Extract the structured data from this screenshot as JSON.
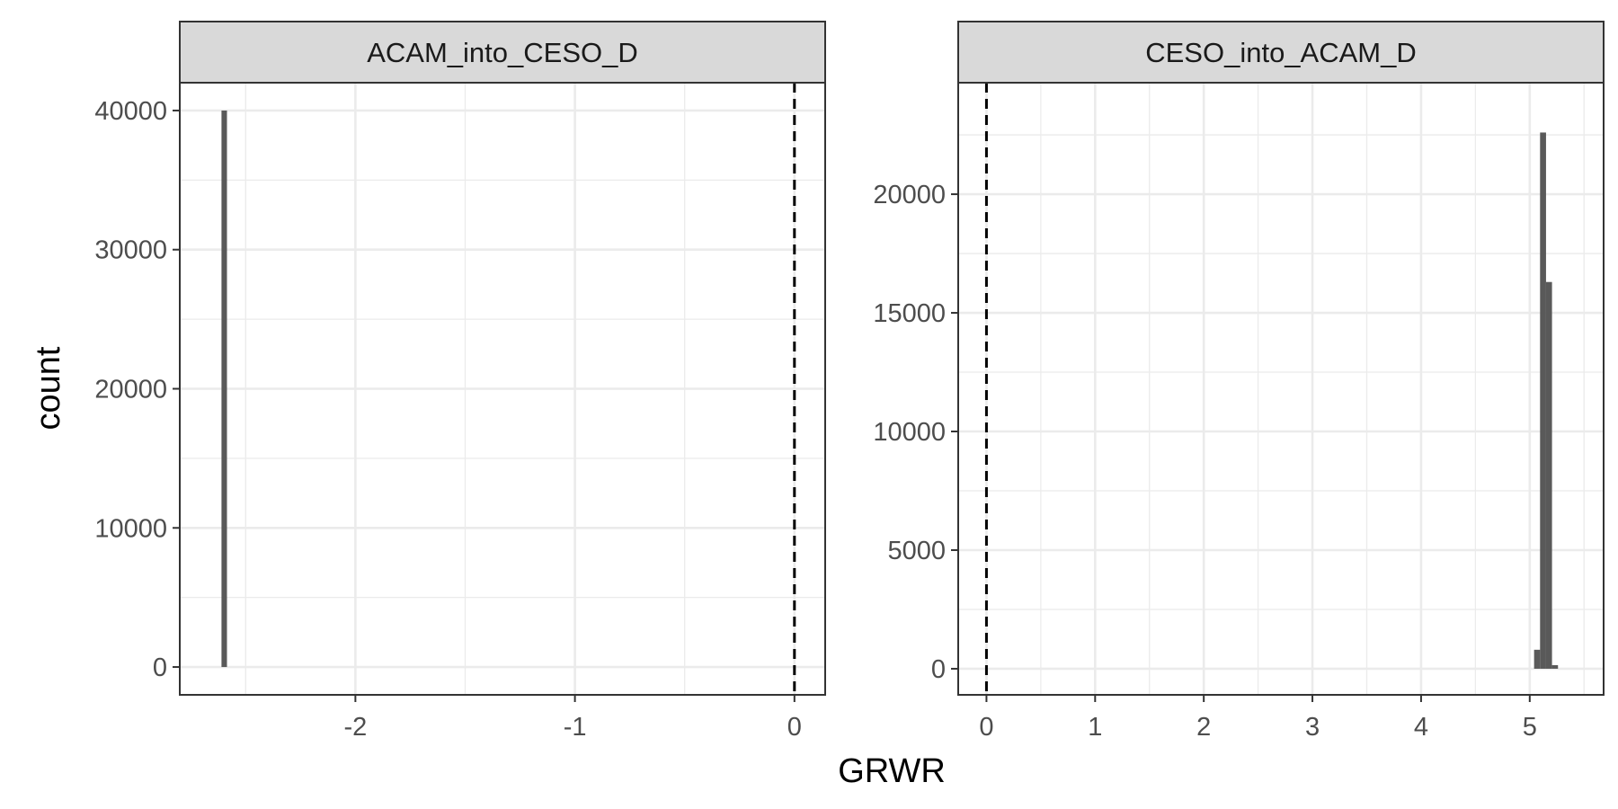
{
  "chart_data": {
    "type": "bar",
    "xlabel": "GRWR",
    "ylabel": "count",
    "vline_x": 0,
    "panels": [
      {
        "strip_label": "ACAM_into_CESO_D",
        "xlim": [
          -2.8,
          0.14
        ],
        "ylim": [
          -2000,
          42000
        ],
        "x_ticks": [
          -2,
          -1,
          0
        ],
        "x_tick_labels": [
          "-2",
          "-1",
          "0"
        ],
        "y_ticks": [
          0,
          10000,
          20000,
          30000,
          40000
        ],
        "y_tick_labels": [
          "0",
          "10000",
          "20000",
          "30000",
          "40000"
        ],
        "bins": [
          {
            "x0": -2.61,
            "x1": -2.585,
            "count": 40000
          }
        ]
      },
      {
        "strip_label": "CESO_into_ACAM_D",
        "xlim": [
          -0.26,
          5.68
        ],
        "ylim": [
          -1100,
          24700
        ],
        "x_ticks": [
          0,
          1,
          2,
          3,
          4,
          5
        ],
        "x_tick_labels": [
          "0",
          "1",
          "2",
          "3",
          "4",
          "5"
        ],
        "y_ticks": [
          0,
          5000,
          10000,
          15000,
          20000
        ],
        "y_tick_labels": [
          "0",
          "5000",
          "10000",
          "15000",
          "20000"
        ],
        "bins": [
          {
            "x0": 5.04,
            "x1": 5.095,
            "count": 800
          },
          {
            "x0": 5.095,
            "x1": 5.15,
            "count": 22600
          },
          {
            "x0": 5.15,
            "x1": 5.205,
            "count": 16300
          },
          {
            "x0": 5.205,
            "x1": 5.26,
            "count": 150
          }
        ]
      }
    ]
  }
}
